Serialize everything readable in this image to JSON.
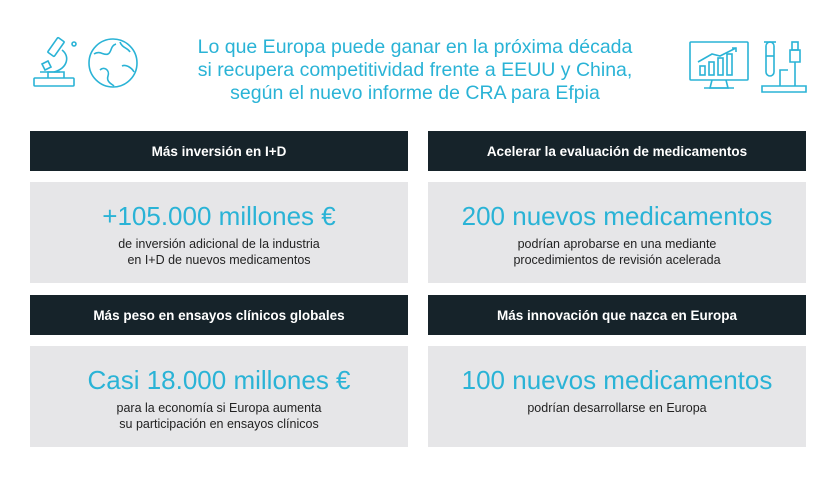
{
  "header": {
    "title_lines": [
      "Lo que Europa puede ganar en la próxima década",
      "si recupera competitividad frente a EEUU y China,",
      "según el nuevo informe de CRA para Efpia"
    ],
    "icons": [
      "microscope-icon",
      "globe-icon",
      "monitor-chart-icon",
      "lab-tubes-icon"
    ],
    "accent_color": "#2ab3d6"
  },
  "cards": [
    {
      "heading": "Más inversión en I+D",
      "value": "+105.000 millones €",
      "desc_lines": [
        "de inversión adicional de la industria",
        "en I+D de nuevos medicamentos"
      ]
    },
    {
      "heading": "Acelerar la evaluación de medicamentos",
      "value": "200 nuevos medicamentos",
      "desc_lines": [
        "podrían aprobarse en una mediante",
        "procedimientos de revisión acelerada"
      ]
    },
    {
      "heading": "Más peso en ensayos clínicos globales",
      "value": "Casi 18.000 millones €",
      "desc_lines": [
        "para la economía si Europa aumenta",
        "su participación en ensayos clínicos"
      ]
    },
    {
      "heading": "Más innovación que nazca en Europa",
      "value": "100 nuevos medicamentos",
      "desc_lines": [
        "podrían desarrollarse en Europa"
      ]
    }
  ]
}
